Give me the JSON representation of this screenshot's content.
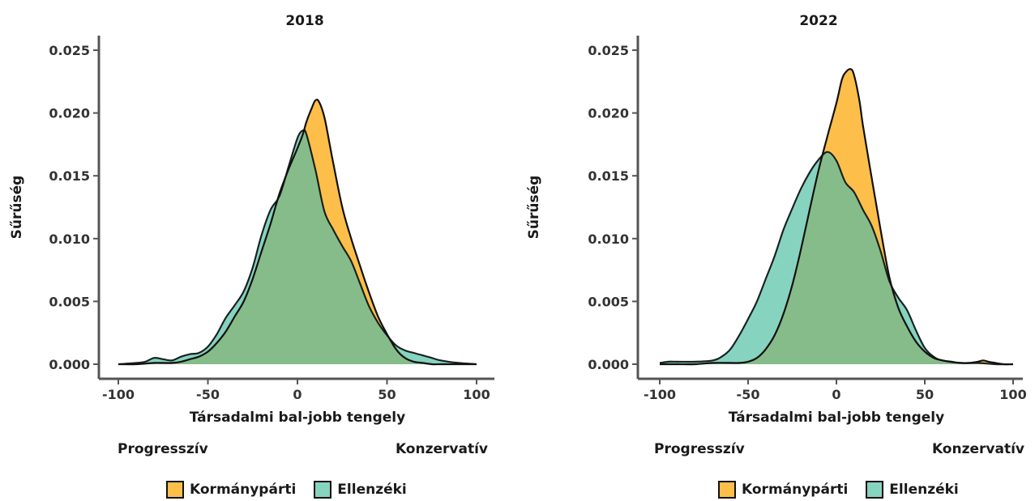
{
  "colors": {
    "kormanyparti": "#FDBF49",
    "ellenzeki": "#86D3C0",
    "overlap": "#86BC8A",
    "axis": "#555555"
  },
  "legend": {
    "items": [
      {
        "label": "Kormánypárti",
        "color": "#FDBF49"
      },
      {
        "label": "Ellenzéki",
        "color": "#86D3C0"
      }
    ]
  },
  "chart_data": [
    {
      "type": "area",
      "title": "2018",
      "xlabel": "Társadalmi bal-jobb tengely",
      "ylabel": "Sűrűség",
      "left_label": "Progresszív",
      "right_label": "Konzervatív",
      "xlim": [
        -100,
        100
      ],
      "ylim": [
        0,
        0.025
      ],
      "x_ticks": [
        -100,
        -50,
        0,
        50,
        100
      ],
      "x_tick_labels": [
        "-100",
        "-50",
        "0",
        "50",
        "100"
      ],
      "y_ticks": [
        0,
        0.005,
        0.01,
        0.015,
        0.02,
        0.025
      ],
      "y_tick_labels": [
        "0.000",
        "0.005",
        "0.010",
        "0.015",
        "0.020",
        "0.025"
      ],
      "series": [
        {
          "name": "Kormánypárti",
          "x": [
            -100,
            -90,
            -80,
            -75,
            -70,
            -65,
            -60,
            -55,
            -50,
            -45,
            -40,
            -35,
            -30,
            -25,
            -20,
            -15,
            -10,
            -5,
            0,
            3,
            5,
            8,
            10,
            12,
            15,
            18,
            20,
            25,
            30,
            35,
            40,
            45,
            50,
            55,
            60,
            65,
            70,
            75,
            80,
            90,
            100
          ],
          "y": [
            0,
            0,
            0.0001,
            0.0001,
            0.0001,
            0.0002,
            0.0004,
            0.0006,
            0.001,
            0.0017,
            0.0026,
            0.0038,
            0.005,
            0.0068,
            0.009,
            0.0112,
            0.0136,
            0.0155,
            0.0172,
            0.0183,
            0.0193,
            0.0204,
            0.021,
            0.0209,
            0.0197,
            0.0175,
            0.016,
            0.0125,
            0.01,
            0.0078,
            0.0057,
            0.0038,
            0.0024,
            0.0012,
            0.0005,
            0.0002,
            0.0001,
            0,
            0,
            0,
            0
          ]
        },
        {
          "name": "Ellenzéki",
          "x": [
            -100,
            -90,
            -85,
            -80,
            -75,
            -70,
            -65,
            -60,
            -55,
            -50,
            -45,
            -40,
            -35,
            -30,
            -25,
            -20,
            -15,
            -10,
            -5,
            0,
            3,
            5,
            10,
            15,
            20,
            25,
            30,
            35,
            40,
            45,
            50,
            55,
            60,
            65,
            70,
            75,
            80,
            90,
            100
          ],
          "y": [
            0,
            0.0001,
            0.0002,
            0.0005,
            0.0004,
            0.0003,
            0.0006,
            0.0008,
            0.0009,
            0.0014,
            0.0024,
            0.0037,
            0.0047,
            0.0058,
            0.0077,
            0.0103,
            0.0123,
            0.0134,
            0.0157,
            0.018,
            0.0186,
            0.0183,
            0.0155,
            0.0122,
            0.0107,
            0.0094,
            0.0082,
            0.0064,
            0.0046,
            0.0033,
            0.0023,
            0.0015,
            0.0011,
            0.0009,
            0.0007,
            0.0005,
            0.0003,
            0.0001,
            0
          ]
        }
      ]
    },
    {
      "type": "area",
      "title": "2022",
      "xlabel": "Társadalmi bal-jobb tengely",
      "ylabel": "Sűrűség",
      "left_label": "Progresszív",
      "right_label": "Konzervatív",
      "xlim": [
        -100,
        100
      ],
      "ylim": [
        0,
        0.025
      ],
      "x_ticks": [
        -100,
        -50,
        0,
        50,
        100
      ],
      "x_tick_labels": [
        "-100",
        "-50",
        "0",
        "50",
        "100"
      ],
      "y_ticks": [
        0,
        0.005,
        0.01,
        0.015,
        0.02,
        0.025
      ],
      "y_tick_labels": [
        "0.000",
        "0.005",
        "0.010",
        "0.015",
        "0.020",
        "0.025"
      ],
      "series": [
        {
          "name": "Kormánypárti",
          "x": [
            -100,
            -90,
            -80,
            -70,
            -60,
            -55,
            -50,
            -45,
            -40,
            -35,
            -30,
            -25,
            -20,
            -15,
            -10,
            -5,
            0,
            3,
            5,
            8,
            10,
            13,
            15,
            20,
            25,
            30,
            35,
            40,
            45,
            50,
            55,
            60,
            65,
            70,
            75,
            80,
            83,
            86,
            90,
            95,
            100
          ],
          "y": [
            0,
            0,
            0,
            0.0001,
            0.0001,
            0.0001,
            0.0002,
            0.0005,
            0.0012,
            0.0023,
            0.004,
            0.0063,
            0.0092,
            0.0124,
            0.0155,
            0.0182,
            0.0208,
            0.0226,
            0.0232,
            0.0235,
            0.023,
            0.021,
            0.019,
            0.0148,
            0.0107,
            0.0069,
            0.0045,
            0.003,
            0.0018,
            0.001,
            0.0005,
            0.0003,
            0.0002,
            0.0001,
            0.0001,
            0.0002,
            0.0003,
            0.0002,
            0.0001,
            0,
            0
          ]
        },
        {
          "name": "Ellenzéki",
          "x": [
            -100,
            -95,
            -90,
            -80,
            -70,
            -65,
            -60,
            -55,
            -50,
            -45,
            -40,
            -35,
            -30,
            -25,
            -20,
            -15,
            -10,
            -5,
            0,
            5,
            10,
            15,
            20,
            25,
            30,
            35,
            40,
            45,
            50,
            55,
            60,
            70,
            80,
            90,
            100
          ],
          "y": [
            0.0001,
            0.0002,
            0.0002,
            0.0002,
            0.0003,
            0.0006,
            0.0012,
            0.0023,
            0.0036,
            0.005,
            0.0068,
            0.0086,
            0.0107,
            0.0124,
            0.014,
            0.0153,
            0.0163,
            0.0169,
            0.0162,
            0.0145,
            0.0137,
            0.0123,
            0.011,
            0.009,
            0.0066,
            0.0053,
            0.0043,
            0.0027,
            0.0013,
            0.0006,
            0.0003,
            0.0001,
            0.0001,
            0,
            0
          ]
        }
      ]
    }
  ]
}
